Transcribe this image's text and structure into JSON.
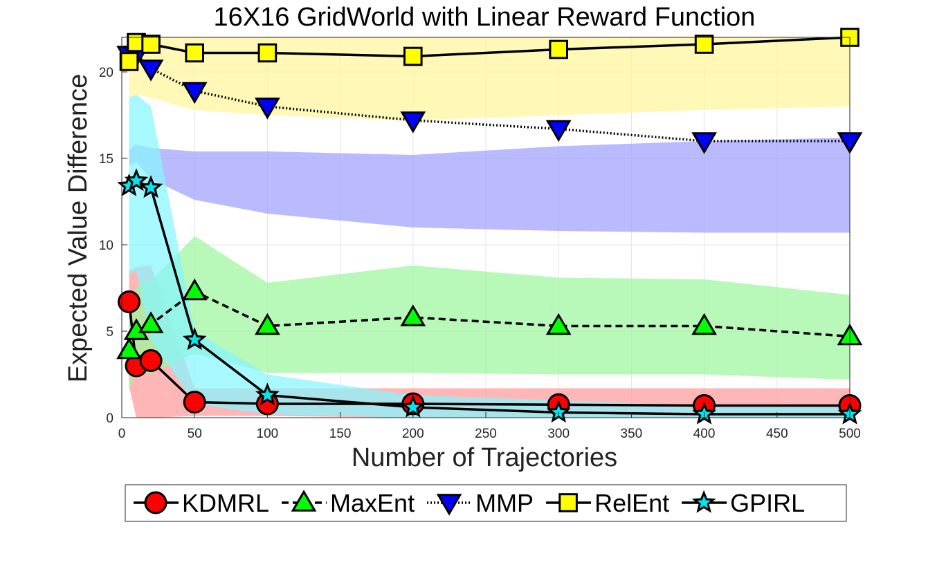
{
  "chart_data": {
    "type": "line",
    "title": "16X16 GridWorld with Linear Reward Function",
    "xlabel": "Number of Trajectories",
    "ylabel": "Expected Value Difference",
    "xlim": [
      0,
      500
    ],
    "ylim": [
      0,
      22
    ],
    "xticks": [
      "0",
      "50",
      "100",
      "150",
      "200",
      "250",
      "300",
      "350",
      "400",
      "450",
      "500"
    ],
    "yticks": [
      "0",
      "5",
      "10",
      "15",
      "20"
    ],
    "grid": true,
    "legend_position": "bottom",
    "x": [
      5,
      10,
      20,
      50,
      100,
      200,
      300,
      400,
      500
    ],
    "series": [
      {
        "name": "KDMRL",
        "marker": "circle",
        "line_style": "solid",
        "marker_color": "#ff0000",
        "band_color": "#ff9a9a",
        "values": [
          6.7,
          3.0,
          3.3,
          0.9,
          0.8,
          0.8,
          0.75,
          0.7,
          0.7
        ],
        "lower": [
          1.8,
          0.0,
          0.0,
          0.1,
          0.1,
          0.0,
          0.0,
          0.0,
          0.0
        ],
        "upper": [
          8.5,
          8.7,
          8.8,
          1.7,
          1.7,
          1.7,
          1.7,
          1.7,
          1.7
        ]
      },
      {
        "name": "MaxEnt",
        "marker": "triangle-up",
        "line_style": "dashed",
        "marker_color": "#00ff00",
        "band_color": "#9cf59c",
        "values": [
          3.9,
          5.0,
          5.4,
          7.3,
          5.3,
          5.8,
          5.3,
          5.3,
          4.7
        ],
        "lower": [
          1.7,
          2.5,
          2.6,
          3.7,
          2.6,
          2.6,
          2.5,
          2.5,
          2.2
        ],
        "upper": [
          6.2,
          7.6,
          7.9,
          10.5,
          7.8,
          8.8,
          8.1,
          8.0,
          7.1
        ]
      },
      {
        "name": "MMP",
        "marker": "triangle-down",
        "line_style": "dotted",
        "marker_color": "#0000ff",
        "band_color": "#9fa0ff",
        "values": [
          21.0,
          21.0,
          20.2,
          18.9,
          18.0,
          17.2,
          16.7,
          16.0,
          16.0
        ],
        "lower": [
          14.6,
          14.8,
          13.8,
          12.6,
          11.8,
          11.0,
          10.8,
          10.7,
          10.7
        ],
        "upper": [
          15.5,
          15.8,
          15.6,
          15.4,
          15.4,
          15.2,
          15.7,
          16.0,
          16.2
        ]
      },
      {
        "name": "RelEnt",
        "marker": "square",
        "line_style": "solid",
        "marker_color": "#ffff00",
        "band_color": "#fff59a",
        "values": [
          20.6,
          21.7,
          21.6,
          21.1,
          21.1,
          20.9,
          21.3,
          21.6,
          22.0
        ],
        "lower": [
          18.5,
          18.7,
          18.5,
          17.8,
          17.5,
          17.2,
          17.5,
          17.8,
          18.0
        ],
        "upper": [
          22.0,
          22.0,
          22.0,
          22.0,
          22.0,
          22.0,
          22.0,
          22.0,
          22.0
        ]
      },
      {
        "name": "GPIRL",
        "marker": "star",
        "line_style": "solid",
        "marker_color": "#00e5ee",
        "band_color": "#87f5ff",
        "values": [
          13.4,
          13.7,
          13.3,
          4.5,
          1.3,
          0.6,
          0.3,
          0.2,
          0.2
        ],
        "lower": [
          8.3,
          8.5,
          4.5,
          0.8,
          0.2,
          0.0,
          0.0,
          0.0,
          0.0
        ],
        "upper": [
          18.5,
          18.7,
          18.0,
          5.0,
          2.5,
          1.3,
          1.0,
          0.7,
          0.6
        ]
      }
    ]
  }
}
